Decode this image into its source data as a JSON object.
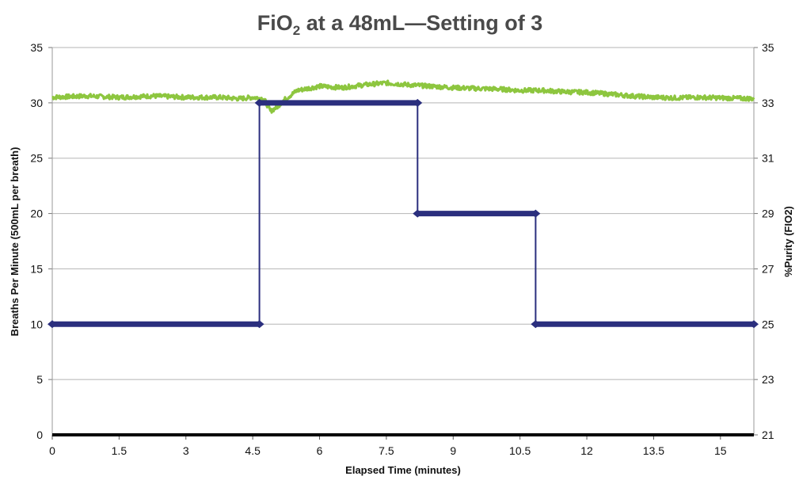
{
  "chart_data": {
    "type": "line",
    "title": {
      "prefix": "FiO",
      "subscript": "2",
      "rest": " at a 48mL—Setting of 3"
    },
    "xlabel": "Elapsed Time (minutes)",
    "ylabel_left": "Breaths Per Minute (500mL per breath)",
    "ylabel_right": "%Purity (FIO2)",
    "xlim": [
      0,
      15.75
    ],
    "ylim_left": [
      0,
      35
    ],
    "ylim_right": [
      21,
      35
    ],
    "x_ticks": [
      0,
      1.5,
      3,
      4.5,
      6,
      7.5,
      9,
      10.5,
      12,
      13.5,
      15
    ],
    "x_tick_labels": [
      "0",
      "1.5",
      "3",
      "4.5",
      "6",
      "7.5",
      "9",
      "10.5",
      "12",
      "13.5",
      "15"
    ],
    "y_left_ticks": [
      0,
      5,
      10,
      15,
      20,
      25,
      30,
      35
    ],
    "y_right_ticks": [
      21,
      23,
      25,
      27,
      29,
      31,
      33,
      35
    ],
    "grid": true,
    "series": [
      {
        "axis": "left",
        "color": "#2b2f7e",
        "style": "step",
        "points": [
          [
            0,
            10
          ],
          [
            4.65,
            10
          ],
          [
            4.65,
            30
          ],
          [
            8.2,
            30
          ],
          [
            8.2,
            20
          ],
          [
            10.85,
            20
          ],
          [
            10.85,
            10
          ],
          [
            15.75,
            10
          ]
        ]
      },
      {
        "axis": "right",
        "color": "#8dc63f",
        "style": "noisy",
        "points": [
          [
            0,
            33.2
          ],
          [
            0.75,
            33.25
          ],
          [
            1.5,
            33.2
          ],
          [
            2.25,
            33.25
          ],
          [
            3,
            33.2
          ],
          [
            3.75,
            33.2
          ],
          [
            4.2,
            33.15
          ],
          [
            4.5,
            33.2
          ],
          [
            4.75,
            33.15
          ],
          [
            4.9,
            32.7
          ],
          [
            5.05,
            32.85
          ],
          [
            5.2,
            33.1
          ],
          [
            5.5,
            33.45
          ],
          [
            6,
            33.6
          ],
          [
            6.5,
            33.55
          ],
          [
            7,
            33.65
          ],
          [
            7.5,
            33.72
          ],
          [
            8,
            33.65
          ],
          [
            8.5,
            33.6
          ],
          [
            9,
            33.55
          ],
          [
            9.5,
            33.52
          ],
          [
            10,
            33.5
          ],
          [
            10.5,
            33.45
          ],
          [
            11,
            33.45
          ],
          [
            11.5,
            33.4
          ],
          [
            12,
            33.38
          ],
          [
            12.5,
            33.32
          ],
          [
            13,
            33.25
          ],
          [
            13.5,
            33.2
          ],
          [
            14,
            33.18
          ],
          [
            14.5,
            33.2
          ],
          [
            15,
            33.18
          ],
          [
            15.75,
            33.15
          ]
        ]
      }
    ]
  }
}
